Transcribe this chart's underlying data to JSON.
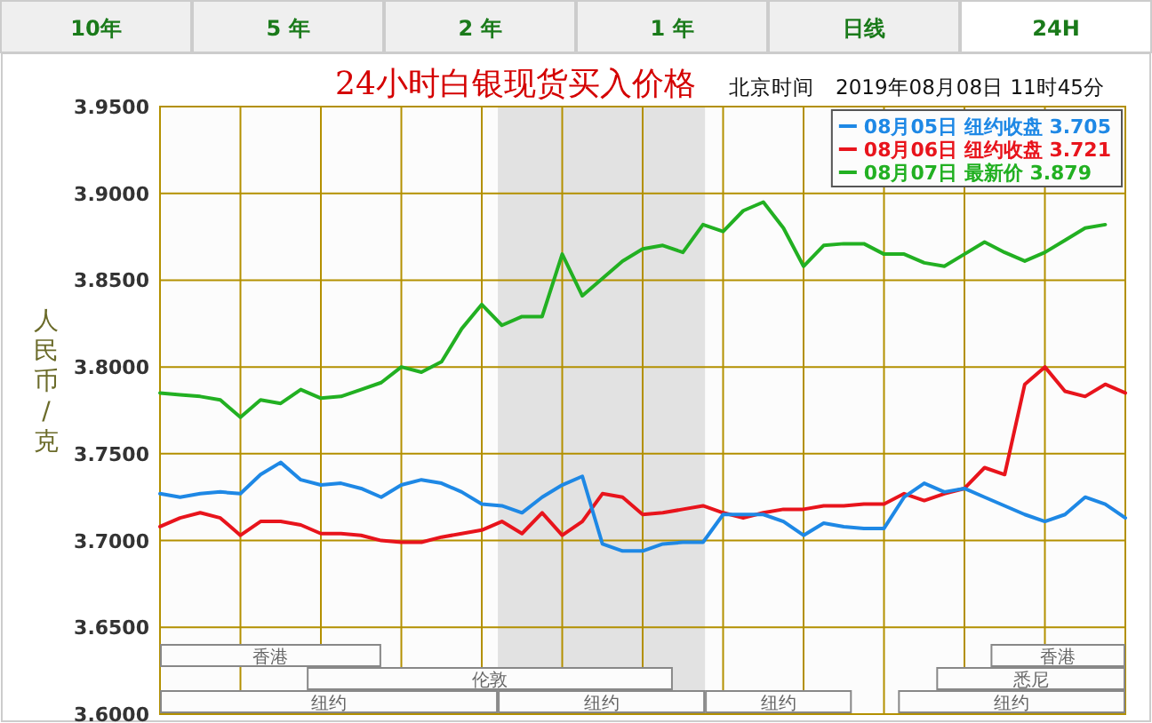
{
  "chart_data": {
    "type": "line",
    "title": "24小时白银现货买入价格",
    "subtitle": "北京时间　2019年08月08日 11时45分",
    "ylabel": "人民币/克",
    "categories": [
      null,
      null,
      null,
      null,
      null,
      null,
      null,
      null,
      null,
      null,
      null,
      null,
      null,
      null,
      null,
      null,
      null,
      null,
      null,
      null,
      null,
      null,
      null,
      null,
      null,
      null,
      null,
      null,
      null,
      null,
      null,
      null,
      null,
      null,
      null,
      null,
      null,
      null,
      null,
      null,
      null,
      null,
      null,
      null,
      null,
      null,
      null,
      null,
      null
    ],
    "ylim": [
      3.6,
      3.95
    ],
    "yticks": [
      {
        "value": 3.6,
        "label": "3.6000"
      },
      {
        "value": 3.65,
        "label": "3.6500"
      },
      {
        "value": 3.7,
        "label": "3.7000"
      },
      {
        "value": 3.75,
        "label": "3.7500"
      },
      {
        "value": 3.8,
        "label": "3.8000"
      },
      {
        "value": 3.85,
        "label": "3.8500"
      },
      {
        "value": 3.9,
        "label": "3.9000"
      },
      {
        "value": 3.95,
        "label": "3.9500"
      }
    ],
    "tick_labels": "y",
    "grid": true,
    "legend": "top right",
    "series": [
      {
        "name": "08月05日  纽约收盘 3.705",
        "color": "#1e88e5",
        "values": [
          3.727,
          3.725,
          3.727,
          3.728,
          3.727,
          3.738,
          3.745,
          3.735,
          3.732,
          3.733,
          3.73,
          3.725,
          3.732,
          3.735,
          3.733,
          3.728,
          3.721,
          3.72,
          3.716,
          3.725,
          3.732,
          3.737,
          3.698,
          3.694,
          3.694,
          3.698,
          3.699,
          3.699,
          3.715,
          3.715,
          3.715,
          3.711,
          3.703,
          3.71,
          3.708,
          3.707,
          3.707,
          3.725,
          3.733,
          3.728,
          3.73,
          3.725,
          3.72,
          3.715,
          3.711,
          3.715,
          3.725,
          3.721,
          3.713
        ]
      },
      {
        "name": "08月06日  纽约收盘 3.721",
        "color": "#e8141c",
        "values": [
          3.708,
          3.713,
          3.716,
          3.713,
          3.703,
          3.711,
          3.711,
          3.709,
          3.704,
          3.704,
          3.703,
          3.7,
          3.699,
          3.699,
          3.702,
          3.704,
          3.706,
          3.711,
          3.704,
          3.716,
          3.703,
          3.711,
          3.727,
          3.725,
          3.715,
          3.716,
          3.718,
          3.72,
          3.716,
          3.713,
          3.716,
          3.718,
          3.718,
          3.72,
          3.72,
          3.721,
          3.721,
          3.727,
          3.723,
          3.727,
          3.73,
          3.742,
          3.738,
          3.79,
          3.8,
          3.786,
          3.783,
          3.79,
          3.785
        ]
      },
      {
        "name": "08月07日  最新价 3.879",
        "color": "#22b022",
        "values": [
          3.785,
          3.784,
          3.783,
          3.781,
          3.771,
          3.781,
          3.779,
          3.787,
          3.782,
          3.783,
          3.787,
          3.791,
          3.8,
          3.797,
          3.803,
          3.822,
          3.836,
          3.824,
          3.829,
          3.829,
          3.865,
          3.841,
          3.851,
          3.861,
          3.868,
          3.87,
          3.866,
          3.882,
          3.878,
          3.89,
          3.895,
          3.88,
          3.858,
          3.87,
          3.871,
          3.871,
          3.865,
          3.865,
          3.86,
          3.858,
          3.865,
          3.872,
          3.866,
          3.861,
          3.866,
          3.873,
          3.88,
          3.882,
          null
        ]
      }
    ],
    "annotations": [
      "10年",
      "5 年",
      "2 年",
      "1 年",
      "日线",
      "24H",
      "香港",
      "伦敦",
      "纽约",
      "纽约",
      "纽约",
      "悉尼",
      "纽约",
      "香港"
    ]
  }
}
